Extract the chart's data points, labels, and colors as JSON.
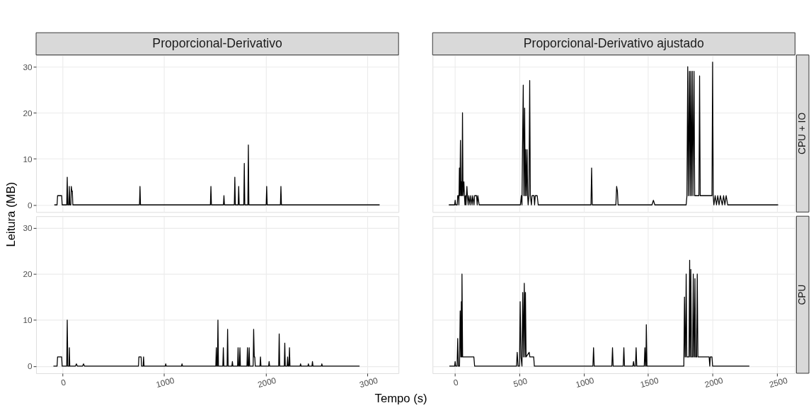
{
  "chart_data": [
    {
      "type": "line",
      "title": "Proporcional-Derivativo",
      "ylabel": "Leitura (MB)",
      "xlim": [
        -256,
        3306
      ],
      "ylim": [
        -1.55,
        32.55
      ],
      "xticks": [
        0,
        1000,
        2000,
        3000
      ],
      "yticks": [
        0,
        10,
        20,
        30
      ],
      "grid": true,
      "tick_labels": "y",
      "series": [
        {
          "color": "#000000",
          "x": [
            -77,
            -50,
            -45,
            -5,
            0,
            45,
            50,
            55,
            65,
            70,
            75,
            85,
            90,
            95,
            100,
            105,
            760,
            765,
            770,
            1457,
            1462,
            1467,
            1585,
            1590,
            1595,
            1692,
            1697,
            1702,
            1730,
            1735,
            1740,
            1785,
            1790,
            1795,
            1825,
            1830,
            1835,
            2005,
            2010,
            2015,
            2145,
            2150,
            2155,
            3120
          ],
          "values": [
            0,
            0,
            2,
            2,
            0,
            0,
            6,
            0,
            0,
            4,
            0,
            0,
            4,
            3,
            3,
            0,
            0,
            4,
            0,
            0,
            4,
            0,
            0,
            2,
            0,
            0,
            6,
            0,
            0,
            4,
            0,
            0,
            9,
            0,
            0,
            13,
            0,
            0,
            4,
            0,
            0,
            4,
            0,
            0
          ]
        }
      ]
    },
    {
      "type": "line",
      "title": "Proporcional-Derivativo ajustado",
      "y2label": "CPU + IO",
      "xlim": [
        -171,
        2639
      ],
      "ylim": [
        -1.55,
        32.55
      ],
      "xticks": [
        0,
        500,
        1000,
        1500,
        2000,
        2500
      ],
      "yticks": [
        0,
        10,
        20,
        30
      ],
      "grid": true,
      "tick_labels": false,
      "series": [
        {
          "color": "#000000",
          "x": [
            -45,
            0,
            4,
            8,
            20,
            24,
            30,
            33,
            37,
            41,
            45,
            49,
            53,
            57,
            61,
            65,
            72,
            76,
            80,
            84,
            88,
            95,
            99,
            105,
            110,
            120,
            125,
            135,
            140,
            150,
            155,
            170,
            175,
            180,
            190,
            510,
            517,
            522,
            526,
            532,
            537,
            543,
            547,
            551,
            556,
            562,
            566,
            570,
            576,
            582,
            587,
            595,
            600,
            615,
            620,
            625,
            640,
            648,
            1057,
            1062,
            1067,
            1250,
            1256,
            1262,
            1267,
            1530,
            1541,
            1552,
            1795,
            1801,
            1807,
            1812,
            1820,
            1825,
            1831,
            1836,
            1843,
            1848,
            1856,
            1861,
            1894,
            1899,
            1904,
            1995,
            2000,
            2005,
            2010,
            2020,
            2030,
            2040,
            2050,
            2060,
            2075,
            2085,
            2095,
            2105,
            2117,
            2508
          ],
          "values": [
            0,
            0,
            1,
            0,
            0,
            2,
            2,
            0,
            8,
            2,
            14,
            2,
            5,
            2,
            20,
            2,
            5,
            2,
            0,
            2,
            0,
            4,
            2,
            0,
            2,
            0,
            2,
            0,
            2,
            0,
            2,
            2,
            0,
            2,
            0,
            0,
            2,
            0,
            12,
            26,
            2,
            21,
            2,
            12,
            2,
            12,
            2,
            0,
            2,
            27,
            2,
            0,
            2,
            2,
            0,
            2,
            2,
            0,
            0,
            8,
            0,
            0,
            4,
            3,
            0,
            0,
            1,
            0,
            0,
            2,
            30,
            2,
            29,
            2,
            29,
            2,
            29,
            2,
            29,
            2,
            2,
            28,
            2,
            2,
            31,
            2,
            0,
            2,
            0,
            2,
            0,
            2,
            0,
            2,
            0,
            2,
            0,
            0
          ]
        }
      ]
    },
    {
      "type": "line",
      "xlabel": "Tempo (s)",
      "xlim": [
        -256,
        3306
      ],
      "ylim": [
        -1.55,
        32.55
      ],
      "xticks": [
        0,
        1000,
        2000,
        3000
      ],
      "yticks": [
        0,
        10,
        20,
        30
      ],
      "grid": true,
      "series": [
        {
          "color": "#000000",
          "x": [
            -86,
            -50,
            -45,
            -5,
            0,
            45,
            50,
            53,
            55,
            68,
            71,
            75,
            130,
            140,
            150,
            200,
            210,
            220,
            750,
            754,
            776,
            780,
            796,
            800,
            805,
            1013,
            1018,
            1023,
            1173,
            1178,
            1183,
            1510,
            1515,
            1520,
            1526,
            1531,
            1536,
            1579,
            1584,
            1589,
            1621,
            1626,
            1631,
            1668,
            1673,
            1678,
            1724,
            1729,
            1734,
            1742,
            1747,
            1752,
            1816,
            1821,
            1826,
            1833,
            1838,
            1843,
            1877,
            1882,
            1888,
            1893,
            1898,
            1944,
            1949,
            1954,
            2029,
            2034,
            2039,
            2128,
            2133,
            2138,
            2183,
            2188,
            2193,
            2211,
            2216,
            2221,
            2229,
            2234,
            2239,
            2338,
            2343,
            2348,
            2415,
            2420,
            2425,
            2455,
            2460,
            2465,
            2547,
            2552,
            2557,
            2923
          ],
          "values": [
            0,
            0,
            2,
            2,
            0,
            0,
            10,
            5,
            0,
            0,
            4,
            0,
            0,
            0.5,
            0,
            0,
            0.5,
            0,
            0,
            2,
            2,
            0,
            0,
            2,
            0,
            0,
            0.5,
            0,
            0,
            0.5,
            0,
            0,
            4,
            0,
            0,
            10,
            0,
            0,
            4,
            0,
            0,
            8,
            0,
            0,
            1,
            0,
            0,
            4,
            0,
            0,
            4,
            0,
            0,
            4,
            0,
            0,
            4,
            0,
            0,
            8,
            2,
            2,
            0,
            0,
            2,
            0,
            0,
            1,
            0,
            0,
            7,
            0,
            0,
            5,
            0,
            0,
            2,
            0,
            0,
            4,
            0,
            0,
            0.5,
            0,
            0,
            0.5,
            0,
            0,
            1,
            0,
            0,
            0.5,
            0,
            0
          ]
        }
      ]
    },
    {
      "type": "line",
      "y2label": "CPU",
      "xlim": [
        -171,
        2639
      ],
      "ylim": [
        -1.55,
        32.55
      ],
      "xticks": [
        0,
        500,
        1000,
        1500,
        2000,
        2500
      ],
      "yticks": [
        0,
        10,
        20,
        30
      ],
      "grid": true,
      "tick_labels": "x",
      "series": [
        {
          "color": "#000000",
          "x": [
            -41,
            0,
            4,
            8,
            19,
            24,
            29,
            38,
            43,
            48,
            52,
            55,
            57,
            62,
            77,
            149,
            155,
            480,
            485,
            492,
            503,
            508,
            514,
            522,
            528,
            533,
            540,
            545,
            549,
            554,
            578,
            583,
            613,
            618,
            1072,
            1077,
            1082,
            1219,
            1224,
            1229,
            1307,
            1312,
            1317,
            1382,
            1387,
            1392,
            1402,
            1407,
            1412,
            1470,
            1475,
            1480,
            1483,
            1486,
            1491,
            1777,
            1782,
            1787,
            1790,
            1795,
            1800,
            1817,
            1822,
            1826,
            1831,
            1836,
            1845,
            1850,
            1855,
            1858,
            1863,
            1868,
            1876,
            1881,
            1886,
            1973,
            1978,
            1982,
            1995,
            2000,
            2285
          ],
          "values": [
            0,
            0,
            1,
            0,
            0,
            6,
            0,
            0,
            12,
            2,
            14,
            2,
            20,
            2,
            2,
            2,
            0,
            0,
            3,
            0,
            0,
            14,
            2,
            0,
            16,
            2,
            18,
            2,
            16,
            2,
            3,
            2,
            2,
            0,
            0,
            4,
            0,
            0,
            4,
            0,
            0,
            4,
            0,
            0,
            1,
            0,
            0,
            4,
            0,
            0,
            4,
            0,
            0,
            9,
            0,
            0,
            15,
            2,
            2,
            20,
            2,
            2,
            23,
            2,
            21,
            2,
            2,
            20,
            2,
            2,
            19,
            2,
            2,
            20,
            2,
            2,
            0,
            2,
            2,
            0,
            0
          ]
        }
      ]
    }
  ]
}
